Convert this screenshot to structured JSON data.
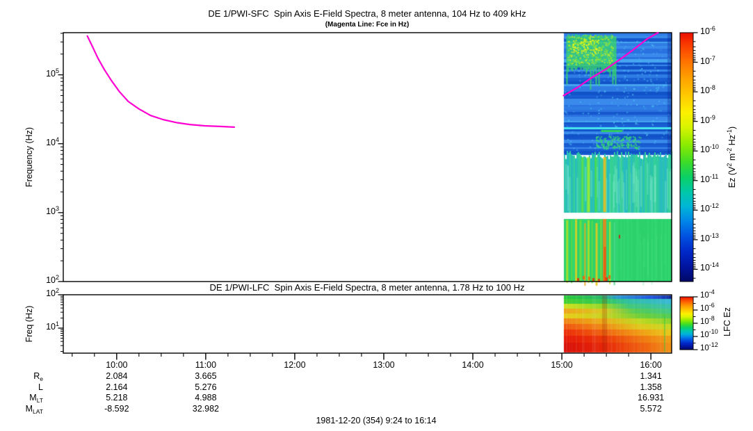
{
  "titles": {
    "sfc": "DE 1/PWI-SFC  Spin Axis E-Field Spectra, 8 meter antenna, 104 Hz to 409 kHz",
    "sfc_sub": "(Magenta Line: Fce in Hz)",
    "lfc": "DE 1/PWI-LFC  Spin Axis E-Field Spectra, 8 meter antenna, 1.78 Hz to 100 Hz",
    "footer": "1981-12-20 (354) 9:24 to 16:14"
  },
  "chart_data": {
    "type": "heatmap",
    "time_axis": {
      "start_hour": 9.4,
      "end_hour": 16.2333,
      "start_label": "9:24",
      "end_label": "16:14",
      "hour_ticks": [
        {
          "t": 10,
          "label": "10:00"
        },
        {
          "t": 11,
          "label": "11:00"
        },
        {
          "t": 12,
          "label": "12:00"
        },
        {
          "t": 13,
          "label": "13:00"
        },
        {
          "t": 14,
          "label": "14:00"
        },
        {
          "t": 15,
          "label": "15:00"
        },
        {
          "t": 16,
          "label": "16:00"
        }
      ],
      "minor_tick_hours": 0.25
    },
    "sfc_panel": {
      "ylabel": "Frequency (Hz)",
      "yscale": "log",
      "ylim_hz": [
        100,
        409000
      ],
      "ytick_exp": [
        2,
        3,
        4,
        5
      ],
      "colorbar": {
        "tick_exp": [
          -6,
          -7,
          -8,
          -9,
          -10,
          -11,
          -12,
          -13,
          -14
        ],
        "label_parts": [
          [
            "Ez (V",
            false
          ],
          [
            "2",
            true
          ],
          [
            " m",
            false
          ],
          [
            "-2",
            true
          ],
          [
            " Hz",
            false
          ],
          [
            "-1",
            true
          ],
          [
            ")",
            false
          ]
        ]
      },
      "fce_color": "#ff00d2",
      "fce_left_t_hz": [
        [
          9.67,
          366000
        ],
        [
          9.73,
          253000
        ],
        [
          9.79,
          174000
        ],
        [
          9.86,
          120000
        ],
        [
          9.94,
          83000
        ],
        [
          10.03,
          57000
        ],
        [
          10.13,
          41000
        ],
        [
          10.25,
          32000
        ],
        [
          10.38,
          25700
        ],
        [
          10.52,
          22400
        ],
        [
          10.67,
          20300
        ],
        [
          10.82,
          19000
        ],
        [
          10.99,
          18200
        ],
        [
          11.16,
          17800
        ],
        [
          11.32,
          17400
        ]
      ],
      "fce_right_t_hz": [
        [
          15.02,
          50000
        ],
        [
          15.18,
          66000
        ],
        [
          15.33,
          90000
        ],
        [
          15.49,
          120000
        ],
        [
          15.65,
          166000
        ],
        [
          15.8,
          230000
        ],
        [
          15.96,
          333000
        ],
        [
          16.08,
          409000
        ]
      ],
      "spectrogram": {
        "t0": 15.02,
        "t1": 16.2333,
        "blue_band": {
          "f_hi": 409000,
          "f_lo": 6900,
          "stripe_palette": [
            "#1557cc",
            "#1a5ed4",
            "#2a72e0",
            "#2e7ce4",
            "#1152c8",
            "#3a8aec"
          ],
          "bright": "#46a4f0",
          "speckle": "#55ccf5"
        },
        "blob": {
          "t0": 15.05,
          "t1": 15.6,
          "f_hi": 380000,
          "f_lo": 130000,
          "base": "#38d868",
          "speckles": [
            "#88e830",
            "#d0f020",
            "#30c8a0"
          ],
          "hot": "#e8f818"
        },
        "cyan_line": {
          "f": 17000,
          "color": "#48e8f0"
        },
        "green_dash": {
          "t0": 15.44,
          "t1": 15.68,
          "f": 16000,
          "color": "#30d060"
        },
        "speckle_band": {
          "t0": 15.38,
          "t1": 15.88,
          "f_hi": 13000,
          "f_lo": 8500,
          "color": "#38d878"
        },
        "mid_band": {
          "f_hi": 6900,
          "f_lo": 1000,
          "palette": [
            "#2cc4ac",
            "#30cca0",
            "#28bcc0",
            "#34d098"
          ],
          "streaks": [
            {
              "t": 15.23,
              "w": 3,
              "c": "#58e048"
            },
            {
              "t": 15.3,
              "w": 4,
              "c": "#98ec30"
            },
            {
              "t": 15.38,
              "w": 3,
              "c": "#48dc50"
            },
            {
              "t": 15.48,
              "w": 4,
              "c": "#e8c020"
            },
            {
              "t": 15.56,
              "w": 2,
              "c": "#38d090"
            },
            {
              "t": 15.66,
              "w": 3,
              "c": "#40d0a0"
            },
            {
              "t": 15.76,
              "w": 3,
              "c": "#38cc98"
            }
          ]
        },
        "white_gap": {
          "f_hi": 1000,
          "f_lo": 815
        },
        "green_band": {
          "f_hi": 815,
          "f_lo": 100,
          "base": "#2ed46e",
          "streaks": [
            {
              "t": 15.06,
              "w": 3,
              "c": "#b0e028"
            },
            {
              "t": 15.11,
              "w": 2,
              "c": "#58dc40"
            },
            {
              "t": 15.16,
              "w": 3,
              "c": "#e0d020"
            },
            {
              "t": 15.21,
              "w": 3,
              "c": "#70e038"
            },
            {
              "t": 15.26,
              "w": 2,
              "c": "#f0a818"
            },
            {
              "t": 15.3,
              "w": 3,
              "c": "#a8e028"
            },
            {
              "t": 15.34,
              "w": 2,
              "c": "#60dc40"
            },
            {
              "t": 15.39,
              "w": 3,
              "c": "#e8c81c"
            },
            {
              "t": 15.44,
              "w": 2,
              "c": "#80e030"
            },
            {
              "t": 15.48,
              "w": 5,
              "c": "#f08018"
            },
            {
              "t": 15.54,
              "w": 2,
              "c": "#c8e024"
            },
            {
              "t": 15.59,
              "w": 2,
              "c": "#50d890"
            }
          ],
          "hot_specks": [
            [
              838,
              397
            ],
            [
              852,
              400
            ],
            [
              868,
              394
            ],
            [
              871,
              399
            ],
            [
              875,
              396
            ],
            [
              860,
              401
            ],
            [
              846,
              398
            ],
            [
              830,
              400
            ]
          ],
          "hot_colors": [
            "#f06010",
            "#e83008"
          ],
          "red_dot": [
            890,
            338,
            "#d01818"
          ]
        }
      }
    },
    "lfc_panel": {
      "ylabel": "Freq (Hz)",
      "yscale": "log",
      "ylim_hz": [
        1.78,
        100
      ],
      "ytick_exp": [
        1,
        2
      ],
      "colorbar": {
        "tick_exp": [
          -4,
          -6,
          -8,
          -10,
          -12
        ],
        "minor_exp": [
          -5,
          -7,
          -9,
          -11
        ],
        "label": "LFC Ez"
      },
      "spectrogram": {
        "t0": 15.02,
        "t1": 16.2333,
        "bands": [
          {
            "f_hi": 100,
            "f_lo": 75,
            "stops": [
              [
                0,
                "#28c838"
              ],
              [
                0.35,
                "#28b868"
              ],
              [
                0.5,
                "#2898d0"
              ],
              [
                0.8,
                "#2058e0"
              ],
              [
                0.95,
                "#1838b0"
              ],
              [
                1,
                "#102890"
              ]
            ]
          },
          {
            "f_hi": 75,
            "f_lo": 54,
            "stops": [
              [
                0,
                "#40d030"
              ],
              [
                0.38,
                "#38c858"
              ],
              [
                0.6,
                "#30c0a0"
              ],
              [
                1,
                "#38b8d8"
              ]
            ]
          },
          {
            "f_hi": 54,
            "f_lo": 38,
            "stops": [
              [
                0,
                "#d0e020"
              ],
              [
                0.38,
                "#90d828"
              ],
              [
                0.6,
                "#40c878"
              ],
              [
                1,
                "#38c0b0"
              ]
            ]
          },
          {
            "f_hi": 38,
            "f_lo": 27,
            "stops": [
              [
                0,
                "#f0a418"
              ],
              [
                0.38,
                "#d8cc20"
              ],
              [
                0.65,
                "#58cc50"
              ],
              [
                1,
                "#40c888"
              ]
            ]
          },
          {
            "f_hi": 27,
            "f_lo": 19.5,
            "stops": [
              [
                0,
                "#e8cc18"
              ],
              [
                0.38,
                "#c8d420"
              ],
              [
                0.7,
                "#70d038"
              ],
              [
                1,
                "#50cc58"
              ]
            ]
          },
          {
            "f_hi": 19.5,
            "f_lo": 13.2,
            "stops": [
              [
                0,
                "#f08414"
              ],
              [
                0.38,
                "#ecb018"
              ],
              [
                0.7,
                "#c0d820"
              ],
              [
                1,
                "#88d42c"
              ]
            ]
          },
          {
            "f_hi": 13.2,
            "f_lo": 9,
            "stops": [
              [
                0,
                "#f05410"
              ],
              [
                0.38,
                "#f08c14"
              ],
              [
                0.7,
                "#e0c81c"
              ],
              [
                1,
                "#c8d820"
              ]
            ]
          },
          {
            "f_hi": 9,
            "f_lo": 5.9,
            "stops": [
              [
                0,
                "#ec2c08"
              ],
              [
                0.38,
                "#f06410"
              ],
              [
                0.75,
                "#f0a414"
              ],
              [
                1,
                "#e8c818"
              ]
            ]
          },
          {
            "f_hi": 5.9,
            "f_lo": 3.6,
            "stops": [
              [
                0,
                "#e41808"
              ],
              [
                0.38,
                "#ec3808"
              ],
              [
                0.75,
                "#f07c10"
              ],
              [
                1,
                "#f0a014"
              ]
            ]
          },
          {
            "f_hi": 3.6,
            "f_lo": 1.78,
            "stops": [
              [
                0,
                "#d81008"
              ],
              [
                0.38,
                "#e82808"
              ],
              [
                0.8,
                "#f06c10"
              ],
              [
                1,
                "#f09414"
              ]
            ]
          }
        ]
      }
    },
    "ephemeris": {
      "row_labels": [
        [
          "R",
          "e"
        ],
        [
          "L",
          ""
        ],
        [
          "M",
          "LT"
        ],
        [
          "M",
          "LAT"
        ]
      ],
      "columns": [
        {
          "time": "10:00",
          "t": 10,
          "values": [
            "2.084",
            "2.164",
            "5.218",
            "-8.592"
          ]
        },
        {
          "time": "11:00",
          "t": 11,
          "values": [
            "3.665",
            "5.276",
            "4.988",
            "32.982"
          ]
        },
        {
          "time": "16:00",
          "t": 16,
          "values": [
            "1.341",
            "1.358",
            "16.931",
            "5.572"
          ]
        }
      ]
    },
    "rainbow_stops": [
      [
        0,
        "#eb0f00"
      ],
      [
        0.05,
        "#fa3c00"
      ],
      [
        0.11,
        "#ff6e00"
      ],
      [
        0.18,
        "#ffa000"
      ],
      [
        0.25,
        "#ffc800"
      ],
      [
        0.32,
        "#fdf000"
      ],
      [
        0.38,
        "#d8f400"
      ],
      [
        0.45,
        "#8ceb00"
      ],
      [
        0.52,
        "#3cdc28"
      ],
      [
        0.58,
        "#0ad066"
      ],
      [
        0.64,
        "#00c8a8"
      ],
      [
        0.7,
        "#00b4d8"
      ],
      [
        0.76,
        "#0084e8"
      ],
      [
        0.82,
        "#0050e0"
      ],
      [
        0.88,
        "#0028c8"
      ],
      [
        0.94,
        "#0014a0"
      ],
      [
        1,
        "#000866"
      ]
    ]
  }
}
